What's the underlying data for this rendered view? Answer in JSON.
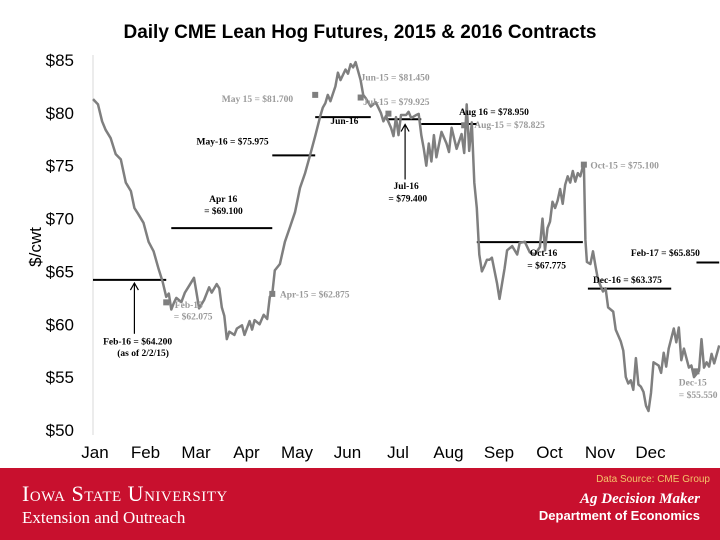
{
  "chart_data": {
    "type": "line",
    "title": "Daily CME Lean Hog Futures, 2015 & 2016 Contracts",
    "ylabel": "$/cwt",
    "ylim": [
      50,
      85
    ],
    "yticks": [
      "$50",
      "$55",
      "$60",
      "$65",
      "$70",
      "$75",
      "$80",
      "$85"
    ],
    "xlim": [
      0,
      12
    ],
    "xticks": [
      "Jan",
      "Feb",
      "Mar",
      "Apr",
      "May",
      "Jun",
      "Jul",
      "Aug",
      "Sep",
      "Oct",
      "Nov",
      "Dec"
    ],
    "grid": false,
    "series": [
      {
        "color": "#7f7f7f",
        "points": [
          [
            0.0,
            81.3
          ],
          [
            0.1,
            80.8
          ],
          [
            0.18,
            79.2
          ],
          [
            0.25,
            78.4
          ],
          [
            0.35,
            77.6
          ],
          [
            0.45,
            76.1
          ],
          [
            0.55,
            75.6
          ],
          [
            0.65,
            73.4
          ],
          [
            0.75,
            72.6
          ],
          [
            0.82,
            71.0
          ],
          [
            0.9,
            70.4
          ],
          [
            1.0,
            69.6
          ],
          [
            1.1,
            67.8
          ],
          [
            1.2,
            66.9
          ],
          [
            1.3,
            65.2
          ],
          [
            1.38,
            64.0
          ],
          [
            1.45,
            62.6
          ],
          [
            1.5,
            62.9
          ],
          [
            1.55,
            61.4
          ],
          [
            1.6,
            62.0
          ],
          [
            1.65,
            62.5
          ],
          [
            1.75,
            62.1
          ],
          [
            1.82,
            63.0
          ],
          [
            1.9,
            63.6
          ],
          [
            2.0,
            64.4
          ],
          [
            2.05,
            63.0
          ],
          [
            2.1,
            61.5
          ],
          [
            2.2,
            62.3
          ],
          [
            2.3,
            63.5
          ],
          [
            2.35,
            63.0
          ],
          [
            2.45,
            63.8
          ],
          [
            2.5,
            63.4
          ],
          [
            2.55,
            61.6
          ],
          [
            2.6,
            60.8
          ],
          [
            2.65,
            58.6
          ],
          [
            2.7,
            59.3
          ],
          [
            2.8,
            59.0
          ],
          [
            2.85,
            59.6
          ],
          [
            2.95,
            59.9
          ],
          [
            3.0,
            59.0
          ],
          [
            3.1,
            60.3
          ],
          [
            3.15,
            59.5
          ],
          [
            3.2,
            60.4
          ],
          [
            3.3,
            60.0
          ],
          [
            3.38,
            60.9
          ],
          [
            3.45,
            60.5
          ],
          [
            3.5,
            62.6
          ],
          [
            3.55,
            62.9
          ],
          [
            3.6,
            65.1
          ],
          [
            3.7,
            65.7
          ],
          [
            3.8,
            67.8
          ],
          [
            3.9,
            69.2
          ],
          [
            4.0,
            70.6
          ],
          [
            4.1,
            72.9
          ],
          [
            4.2,
            74.3
          ],
          [
            4.3,
            76.0
          ],
          [
            4.4,
            77.8
          ],
          [
            4.5,
            79.7
          ],
          [
            4.55,
            80.5
          ],
          [
            4.6,
            80.9
          ],
          [
            4.65,
            81.7
          ],
          [
            4.7,
            81.1
          ],
          [
            4.8,
            82.5
          ],
          [
            4.85,
            83.8
          ],
          [
            4.9,
            83.1
          ],
          [
            5.0,
            84.1
          ],
          [
            5.05,
            83.7
          ],
          [
            5.1,
            84.6
          ],
          [
            5.15,
            84.3
          ],
          [
            5.2,
            84.8
          ],
          [
            5.3,
            83.1
          ],
          [
            5.35,
            81.7
          ],
          [
            5.4,
            81.4
          ],
          [
            5.5,
            80.6
          ],
          [
            5.6,
            81.0
          ],
          [
            5.7,
            80.0
          ],
          [
            5.75,
            79.2
          ],
          [
            5.8,
            79.7
          ],
          [
            5.9,
            78.6
          ],
          [
            5.95,
            77.8
          ],
          [
            6.0,
            79.6
          ],
          [
            6.05,
            77.9
          ],
          [
            6.1,
            79.8
          ],
          [
            6.2,
            79.8
          ],
          [
            6.25,
            80.1
          ],
          [
            6.3,
            79.5
          ],
          [
            6.4,
            79.8
          ],
          [
            6.45,
            79.9
          ],
          [
            6.5,
            77.9
          ],
          [
            6.55,
            76.6
          ],
          [
            6.6,
            75.0
          ],
          [
            6.65,
            77.1
          ],
          [
            6.7,
            75.4
          ],
          [
            6.75,
            77.9
          ],
          [
            6.8,
            75.8
          ],
          [
            6.9,
            78.2
          ],
          [
            7.0,
            77.1
          ],
          [
            7.05,
            76.3
          ],
          [
            7.1,
            78.6
          ],
          [
            7.2,
            76.6
          ],
          [
            7.3,
            78.0
          ],
          [
            7.35,
            76.2
          ],
          [
            7.4,
            80.8
          ],
          [
            7.45,
            76.4
          ],
          [
            7.5,
            79.1
          ],
          [
            7.55,
            73.4
          ],
          [
            7.6,
            71.0
          ],
          [
            7.65,
            66.6
          ],
          [
            7.7,
            65.0
          ],
          [
            7.75,
            65.5
          ],
          [
            7.8,
            66.1
          ],
          [
            7.85,
            66.1
          ],
          [
            7.9,
            66.3
          ],
          [
            8.0,
            63.9
          ],
          [
            8.05,
            62.4
          ],
          [
            8.15,
            65.3
          ],
          [
            8.2,
            67.0
          ],
          [
            8.3,
            67.4
          ],
          [
            8.4,
            66.6
          ],
          [
            8.45,
            67.7
          ],
          [
            8.55,
            67.8
          ],
          [
            8.65,
            66.8
          ],
          [
            8.75,
            66.6
          ],
          [
            8.85,
            67.3
          ],
          [
            8.9,
            70.0
          ],
          [
            8.95,
            67.0
          ],
          [
            9.0,
            69.1
          ],
          [
            9.05,
            69.7
          ],
          [
            9.1,
            71.6
          ],
          [
            9.15,
            71.0
          ],
          [
            9.2,
            71.7
          ],
          [
            9.25,
            72.8
          ],
          [
            9.3,
            71.4
          ],
          [
            9.35,
            73.2
          ],
          [
            9.4,
            74.0
          ],
          [
            9.45,
            73.4
          ],
          [
            9.5,
            74.5
          ],
          [
            9.55,
            73.5
          ],
          [
            9.6,
            74.3
          ],
          [
            9.65,
            74.0
          ],
          [
            9.7,
            74.9
          ],
          [
            9.72,
            75.1
          ],
          [
            9.75,
            68.0
          ],
          [
            9.78,
            65.9
          ],
          [
            9.85,
            65.7
          ],
          [
            9.9,
            66.9
          ],
          [
            9.95,
            65.5
          ],
          [
            10.0,
            64.2
          ],
          [
            10.1,
            63.1
          ],
          [
            10.15,
            63.4
          ],
          [
            10.2,
            61.6
          ],
          [
            10.3,
            61.2
          ],
          [
            10.35,
            59.5
          ],
          [
            10.45,
            58.4
          ],
          [
            10.5,
            57.5
          ],
          [
            10.55,
            55.0
          ],
          [
            10.6,
            54.4
          ],
          [
            10.65,
            54.7
          ],
          [
            10.7,
            53.8
          ],
          [
            10.75,
            56.8
          ],
          [
            10.8,
            54.3
          ],
          [
            10.85,
            54.1
          ],
          [
            10.9,
            53.6
          ],
          [
            10.95,
            52.3
          ],
          [
            11.0,
            51.8
          ],
          [
            11.05,
            53.5
          ],
          [
            11.1,
            56.4
          ],
          [
            11.2,
            56.1
          ],
          [
            11.25,
            55.4
          ],
          [
            11.3,
            57.3
          ],
          [
            11.35,
            56.0
          ],
          [
            11.4,
            57.7
          ],
          [
            11.5,
            59.6
          ],
          [
            11.55,
            58.3
          ],
          [
            11.6,
            59.7
          ],
          [
            11.65,
            56.6
          ],
          [
            11.7,
            57.7
          ],
          [
            11.8,
            55.9
          ],
          [
            11.85,
            56.1
          ],
          [
            11.9,
            55.0
          ],
          [
            11.95,
            55.3
          ],
          [
            12.0,
            55.6
          ],
          [
            12.05,
            58.6
          ],
          [
            12.1,
            55.9
          ],
          [
            12.15,
            56.4
          ],
          [
            12.2,
            56.0
          ],
          [
            12.25,
            57.2
          ],
          [
            12.3,
            56.3
          ],
          [
            12.4,
            58.0
          ]
        ],
        "markers": [
          [
            1.45,
            62.075
          ],
          [
            3.55,
            62.875
          ],
          [
            4.4,
            81.7
          ],
          [
            5.3,
            81.45
          ],
          [
            5.85,
            79.925
          ],
          [
            7.35,
            78.825
          ],
          [
            9.72,
            75.1
          ],
          [
            11.95,
            55.55
          ]
        ]
      }
    ],
    "reference_lines": [
      {
        "x": [
          0.0,
          1.45
        ],
        "y": 64.2
      },
      {
        "x": [
          1.55,
          3.55
        ],
        "y": 69.1
      },
      {
        "x": [
          3.55,
          4.4
        ],
        "y": 75.975
      },
      {
        "x": [
          4.4,
          5.5
        ],
        "y": 79.6
      },
      {
        "x": [
          5.8,
          6.5
        ],
        "y": 79.4
      },
      {
        "x": [
          6.5,
          7.6
        ],
        "y": 78.95
      },
      {
        "x": [
          7.6,
          9.7
        ],
        "y": 67.775
      },
      {
        "x": [
          9.8,
          11.45
        ],
        "y": 63.375
      },
      {
        "x": [
          11.95,
          12.4
        ],
        "y": 65.85
      }
    ],
    "annotations": [
      {
        "text": "Feb-15",
        "color": "gray",
        "x": 1.62,
        "y": 61.55
      },
      {
        "text": "= $62.075",
        "color": "gray",
        "x": 1.6,
        "y": 60.45
      },
      {
        "text": "Feb-16 = $64.200",
        "color": "black",
        "x": 0.2,
        "y": 58.1
      },
      {
        "text": "(as of 2/2/15)",
        "color": "black",
        "x": 0.48,
        "y": 57.0
      },
      {
        "text": "Apr 16",
        "color": "black",
        "x": 2.3,
        "y": 71.55
      },
      {
        "text": "= $69.100",
        "color": "black",
        "x": 2.2,
        "y": 70.45
      },
      {
        "text": "Apr-15 = $62.875",
        "color": "gray",
        "x": 3.7,
        "y": 62.55
      },
      {
        "text": "May-16 = $75.975",
        "color": "black",
        "x": 2.05,
        "y": 77.0
      },
      {
        "text": "May 15 = $81.700",
        "color": "gray",
        "x": 2.55,
        "y": 81.05
      },
      {
        "text": "Jun-16",
        "color": "black",
        "x": 4.7,
        "y": 78.95
      },
      {
        "text": "Jun-15 = $81.450",
        "color": "gray",
        "x": 5.3,
        "y": 83.05
      },
      {
        "text": "Jul-15 = $79.925",
        "color": "gray",
        "x": 5.35,
        "y": 80.75
      },
      {
        "text": "Jul-16",
        "color": "black",
        "x": 5.95,
        "y": 72.8
      },
      {
        "text": "= $79.400",
        "color": "black",
        "x": 5.85,
        "y": 71.6
      },
      {
        "text": "Aug 16 = $78.950",
        "color": "black",
        "x": 7.25,
        "y": 79.8
      },
      {
        "text": "Aug-15 = $78.825",
        "color": "gray",
        "x": 7.55,
        "y": 78.55
      },
      {
        "text": "Oct-15 = $75.100",
        "color": "gray",
        "x": 9.85,
        "y": 74.75
      },
      {
        "text": "Oct-16",
        "color": "black",
        "x": 8.65,
        "y": 66.45
      },
      {
        "text": "= $67.775",
        "color": "black",
        "x": 8.6,
        "y": 65.3
      },
      {
        "text": "Dec-16 = $63.375",
        "color": "black",
        "x": 9.9,
        "y": 63.9
      },
      {
        "text": "Feb-17 = $65.850",
        "color": "black",
        "x": 10.65,
        "y": 66.45
      },
      {
        "text": "Dec-15",
        "color": "gray",
        "x": 11.6,
        "y": 54.2
      },
      {
        "text": "= $55.550",
        "color": "gray",
        "x": 11.6,
        "y": 53.05
      }
    ],
    "arrows": [
      {
        "from": [
          0.82,
          59.1
        ],
        "to": [
          0.82,
          63.9
        ]
      },
      {
        "from": [
          6.18,
          73.7
        ],
        "to": [
          6.18,
          78.9
        ]
      }
    ]
  },
  "footer": {
    "source": "Data Source: CME Group",
    "university": "Iowa State University",
    "extension": "Extension and Outreach",
    "program": "Ag Decision Maker",
    "department": "Department of Economics",
    "background": "#c8102e"
  }
}
